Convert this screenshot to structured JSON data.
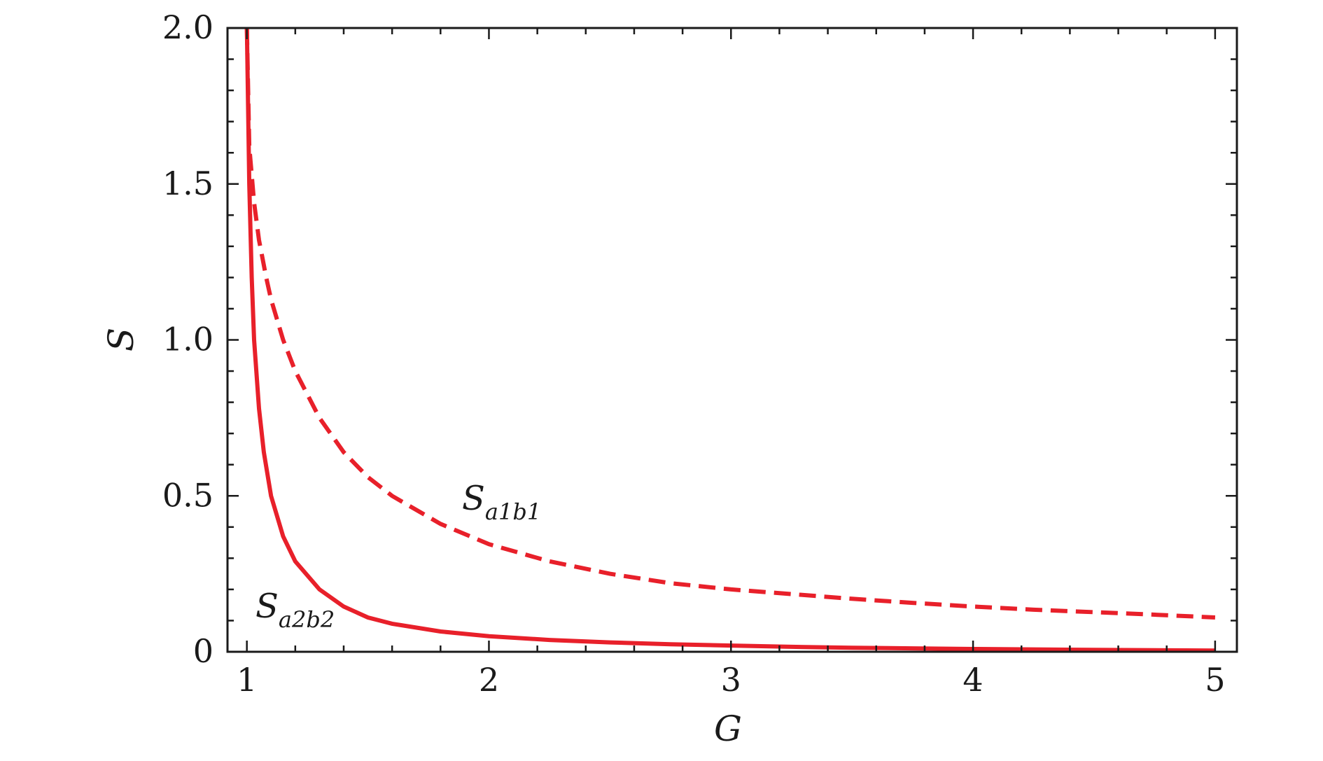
{
  "chart_data": {
    "type": "line",
    "xlabel": "G",
    "ylabel": "S",
    "xlim": [
      0.92,
      5.09
    ],
    "ylim": [
      0,
      2.0
    ],
    "xticks": [
      1,
      2,
      3,
      4,
      5
    ],
    "xtick_labels": [
      "1",
      "2",
      "3",
      "4",
      "5"
    ],
    "yticks": [
      0,
      0.5,
      1.0,
      1.5,
      2.0
    ],
    "ytick_labels": [
      "0",
      "0.5",
      "1.0",
      "1.5",
      "2.0"
    ],
    "grid": false,
    "color": "#e8202a",
    "series": [
      {
        "name": "Sa1b1",
        "label_main": "S",
        "label_sub": "a1b1",
        "style": "dashed",
        "x": [
          1.0,
          1.01,
          1.03,
          1.05,
          1.08,
          1.1,
          1.15,
          1.2,
          1.3,
          1.4,
          1.5,
          1.6,
          1.8,
          2.0,
          2.25,
          2.5,
          2.75,
          3.0,
          3.25,
          3.5,
          3.75,
          4.0,
          4.25,
          4.5,
          4.75,
          5.0
        ],
        "y": [
          2.0,
          1.62,
          1.44,
          1.32,
          1.2,
          1.13,
          1.0,
          0.9,
          0.75,
          0.64,
          0.56,
          0.5,
          0.41,
          0.345,
          0.29,
          0.25,
          0.22,
          0.2,
          0.185,
          0.17,
          0.157,
          0.145,
          0.135,
          0.127,
          0.119,
          0.11
        ]
      },
      {
        "name": "Sa2b2",
        "label_main": "S",
        "label_sub": "a2b2",
        "style": "solid",
        "x": [
          1.0,
          1.005,
          1.01,
          1.02,
          1.03,
          1.05,
          1.07,
          1.1,
          1.15,
          1.2,
          1.3,
          1.4,
          1.5,
          1.6,
          1.8,
          2.0,
          2.25,
          2.5,
          2.75,
          3.0,
          3.25,
          3.5,
          3.75,
          4.0,
          4.5,
          5.0
        ],
        "y": [
          2.0,
          1.75,
          1.5,
          1.2,
          1.0,
          0.78,
          0.64,
          0.5,
          0.37,
          0.29,
          0.2,
          0.145,
          0.11,
          0.09,
          0.065,
          0.05,
          0.038,
          0.03,
          0.024,
          0.02,
          0.016,
          0.013,
          0.011,
          0.009,
          0.006,
          0.004
        ]
      }
    ]
  }
}
